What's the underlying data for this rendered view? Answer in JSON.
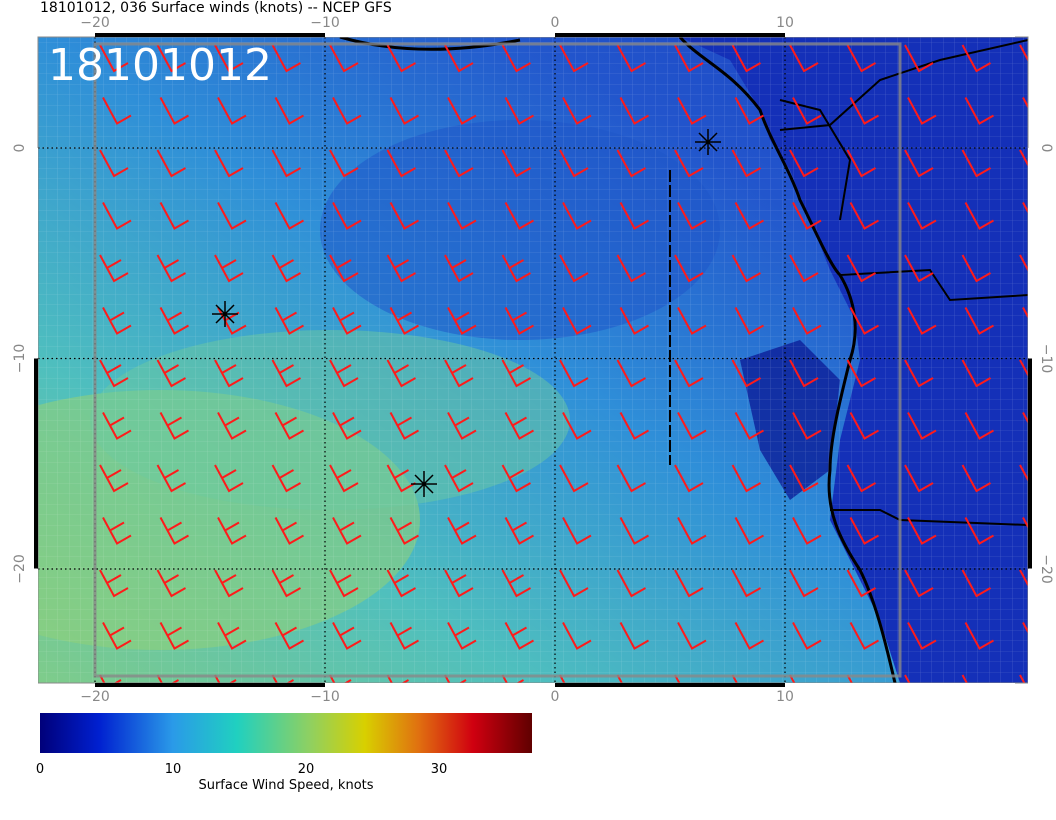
{
  "title": "18101012, 036 Surface winds (knots) -- NCEP GFS",
  "map_label": "18101012",
  "lon_ticks": [
    {
      "value": -20,
      "label": "−20"
    },
    {
      "value": -10,
      "label": "−10"
    },
    0,
    10
  ],
  "lat_ticks": [
    0,
    {
      "value": -10,
      "label": "−10"
    },
    {
      "value": -20,
      "label": "−20"
    }
  ],
  "colorbar": {
    "ticks": [
      0,
      10,
      20,
      30
    ],
    "label": "Surface Wind Speed, knots"
  }
}
